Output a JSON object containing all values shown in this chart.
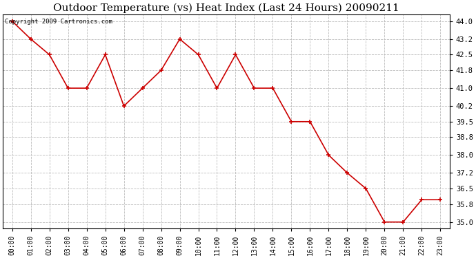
{
  "title": "Outdoor Temperature (vs) Heat Index (Last 24 Hours) 20090211",
  "copyright_text": "Copyright 2009 Cartronics.com",
  "hours": [
    0,
    1,
    2,
    3,
    4,
    5,
    6,
    7,
    8,
    9,
    10,
    11,
    12,
    13,
    14,
    15,
    16,
    17,
    18,
    19,
    20,
    21,
    22,
    23
  ],
  "x_labels": [
    "00:00",
    "01:00",
    "02:00",
    "03:00",
    "04:00",
    "05:00",
    "06:00",
    "07:00",
    "08:00",
    "09:00",
    "10:00",
    "11:00",
    "12:00",
    "13:00",
    "14:00",
    "15:00",
    "16:00",
    "17:00",
    "18:00",
    "19:00",
    "20:00",
    "21:00",
    "22:00",
    "23:00"
  ],
  "values": [
    44.0,
    43.2,
    42.5,
    41.0,
    41.0,
    42.5,
    40.2,
    41.0,
    41.8,
    43.2,
    42.5,
    41.0,
    42.5,
    41.0,
    41.0,
    39.5,
    39.5,
    38.0,
    37.2,
    36.5,
    35.0,
    35.0,
    36.0,
    36.0
  ],
  "line_color": "#cc0000",
  "marker": "+",
  "marker_color": "#cc0000",
  "bg_color": "#ffffff",
  "plot_bg_color": "#ffffff",
  "grid_color": "#bbbbbb",
  "title_fontsize": 11,
  "ylim_min": 34.7,
  "ylim_max": 44.3,
  "yticks": [
    35.0,
    35.8,
    36.5,
    37.2,
    38.0,
    38.8,
    39.5,
    40.2,
    41.0,
    41.8,
    42.5,
    43.2,
    44.0
  ]
}
